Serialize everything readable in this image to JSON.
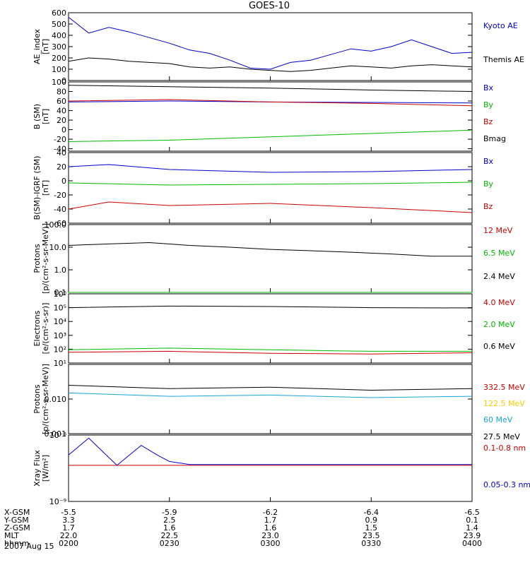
{
  "title": "GOES-10",
  "date": "2007 Aug 15",
  "chart_data": [
    {
      "type": "line",
      "id": "ae",
      "ylabel": [
        "AE_index",
        "[nT]"
      ],
      "ylim": [
        0,
        600
      ],
      "yticks": [
        "0",
        "100",
        "200",
        "300",
        "400",
        "500",
        "600"
      ],
      "ytick_values": [
        0,
        100,
        200,
        300,
        400,
        500,
        600
      ],
      "series": [
        {
          "name": "Kyoto AE",
          "color": "#0000cc",
          "x": [
            0,
            0.05,
            0.1,
            0.15,
            0.2,
            0.25,
            0.3,
            0.35,
            0.4,
            0.45,
            0.5,
            0.55,
            0.6,
            0.65,
            0.7,
            0.75,
            0.8,
            0.85,
            0.9,
            0.95,
            1.0
          ],
          "values": [
            560,
            420,
            470,
            430,
            380,
            330,
            270,
            240,
            180,
            110,
            100,
            160,
            180,
            230,
            280,
            260,
            300,
            360,
            300,
            240,
            250
          ]
        },
        {
          "name": "Themis AE",
          "color": "#000000",
          "x": [
            0,
            0.05,
            0.1,
            0.15,
            0.2,
            0.25,
            0.3,
            0.35,
            0.4,
            0.45,
            0.5,
            0.55,
            0.6,
            0.65,
            0.7,
            0.75,
            0.8,
            0.85,
            0.9,
            0.95,
            1.0
          ],
          "values": [
            170,
            200,
            190,
            170,
            160,
            150,
            120,
            110,
            120,
            100,
            90,
            80,
            90,
            110,
            130,
            120,
            110,
            130,
            140,
            130,
            120
          ]
        }
      ]
    },
    {
      "type": "line",
      "id": "b_sm",
      "ylabel": [
        "B (SM)",
        "[nT]"
      ],
      "ylim": [
        -45,
        100
      ],
      "yticks": [
        "100",
        "80",
        "60",
        "40",
        "20",
        "0",
        "-20",
        "-40"
      ],
      "ytick_values": [
        100,
        80,
        60,
        40,
        20,
        0,
        -20,
        -40
      ],
      "series": [
        {
          "name": "Bx",
          "color": "#0000cc",
          "x": [
            0,
            0.25,
            0.5,
            0.75,
            1.0
          ],
          "values": [
            58,
            60,
            58,
            57,
            56
          ]
        },
        {
          "name": "By",
          "color": "#00bb00",
          "x": [
            0,
            0.25,
            0.5,
            0.75,
            1.0
          ],
          "values": [
            -25,
            -22,
            -15,
            -8,
            -1
          ]
        },
        {
          "name": "Bz",
          "color": "#cc0000",
          "x": [
            0,
            0.25,
            0.5,
            0.75,
            1.0
          ],
          "values": [
            60,
            63,
            58,
            55,
            50
          ]
        },
        {
          "name": "Bmag",
          "color": "#000000",
          "x": [
            0,
            0.25,
            0.5,
            0.75,
            1.0
          ],
          "values": [
            93,
            90,
            87,
            83,
            80
          ]
        }
      ]
    },
    {
      "type": "line",
      "id": "b_igrf",
      "ylabel": [
        "B(SM)-IGRF (SM)",
        "[nT]"
      ],
      "ylim": [
        -60,
        40
      ],
      "yticks": [
        "40",
        "20",
        "0",
        "-20",
        "-40",
        "-60"
      ],
      "ytick_values": [
        40,
        20,
        0,
        -20,
        -40,
        -60
      ],
      "series": [
        {
          "name": "Bx",
          "color": "#0000cc",
          "x": [
            0,
            0.1,
            0.25,
            0.5,
            0.75,
            1.0
          ],
          "values": [
            20,
            23,
            16,
            12,
            13,
            16
          ]
        },
        {
          "name": "By",
          "color": "#00bb00",
          "x": [
            0,
            0.25,
            0.5,
            0.75,
            1.0
          ],
          "values": [
            -3,
            -6,
            -5,
            -4,
            -2
          ]
        },
        {
          "name": "Bz",
          "color": "#cc0000",
          "x": [
            0,
            0.1,
            0.25,
            0.5,
            0.75,
            1.0
          ],
          "values": [
            -40,
            -30,
            -35,
            -32,
            -38,
            -45
          ]
        }
      ]
    },
    {
      "type": "line",
      "id": "protons_low",
      "yscale": "log",
      "ylabel": [
        "Protons",
        "[p/(cm²-s-sr-MeV)]"
      ],
      "ylim": [
        0.1,
        100
      ],
      "yticks": [
        "0.1",
        "1.0",
        "10.0",
        "100.0"
      ],
      "ytick_values": [
        0.1,
        1,
        10,
        100
      ],
      "series": [
        {
          "name": "12 MeV",
          "color": "#cc0000",
          "x": [
            0.0,
            0.5,
            1.0
          ],
          "values": [
            0.1,
            0.1,
            0.1
          ]
        },
        {
          "name": "6.5 MeV",
          "color": "#00bb00",
          "x": [
            0.0,
            1.0
          ],
          "values": [
            0.1,
            0.1
          ]
        },
        {
          "name": "2.4 MeV",
          "color": "#000000",
          "x": [
            0,
            0.1,
            0.2,
            0.3,
            0.4,
            0.5,
            0.6,
            0.7,
            0.8,
            0.9,
            1.0
          ],
          "values": [
            12,
            14,
            16,
            12,
            10,
            8,
            7,
            6,
            5,
            4,
            4
          ]
        }
      ]
    },
    {
      "type": "line",
      "id": "electrons",
      "yscale": "log",
      "ylabel": [
        "Electrons",
        "[e/(cm²-s-sr)]"
      ],
      "ylim": [
        10,
        1000000
      ],
      "yticks": [
        "10¹",
        "10²",
        "10³",
        "10⁴",
        "10⁵",
        "10⁶"
      ],
      "ytick_values": [
        10,
        100,
        1000,
        10000,
        100000,
        1000000
      ],
      "series": [
        {
          "name": "4.0 MeV",
          "color": "#cc0000",
          "x": [
            0,
            0.25,
            0.5,
            0.75,
            1.0
          ],
          "values": [
            60,
            70,
            50,
            45,
            55
          ]
        },
        {
          "name": "2.0 MeV",
          "color": "#00bb00",
          "x": [
            0,
            0.25,
            0.5,
            0.75,
            1.0
          ],
          "values": [
            90,
            120,
            90,
            70,
            70
          ]
        },
        {
          "name": "0.6 MeV",
          "color": "#000000",
          "x": [
            0,
            0.25,
            0.5,
            0.75,
            1.0
          ],
          "values": [
            100000,
            130000,
            120000,
            100000,
            95000
          ]
        }
      ]
    },
    {
      "type": "line",
      "id": "protons_high",
      "yscale": "log",
      "ylabel": [
        "Protons",
        "[p/(cm²-s-sr-MeV)]"
      ],
      "ylim": [
        0.001,
        0.1
      ],
      "yticks": [
        "0.001",
        "0.010"
      ],
      "ytick_values": [
        0.001,
        0.01
      ],
      "series": [
        {
          "name": "332.5 MeV",
          "color": "#cc0000",
          "x": [],
          "values": []
        },
        {
          "name": "122.5 MeV",
          "color": "#ffcc00",
          "x": [],
          "values": []
        },
        {
          "name": "60 MeV",
          "color": "#1aa3d9",
          "x": [
            0,
            0.25,
            0.5,
            0.75,
            1.0
          ],
          "values": [
            0.015,
            0.012,
            0.013,
            0.011,
            0.012
          ]
        },
        {
          "name": "27.5 MeV",
          "color": "#000000",
          "x": [
            0,
            0.25,
            0.5,
            0.75,
            1.0
          ],
          "values": [
            0.025,
            0.02,
            0.022,
            0.018,
            0.02
          ]
        }
      ]
    },
    {
      "type": "line",
      "id": "xray",
      "yscale": "log",
      "ylabel": [
        "Xray Flux",
        "[W/m²]"
      ],
      "ylim": [
        1e-09,
        1e-08
      ],
      "yticks": [
        "10⁻⁹",
        "10⁻⁸"
      ],
      "ytick_values": [
        1e-09,
        1e-08
      ],
      "series": [
        {
          "name": "0.1-0.8 nm",
          "color": "#cc0000",
          "x": [
            0,
            1.0
          ],
          "values": [
            3.5e-09,
            3.5e-09
          ]
        },
        {
          "name": "0.05-0.3 nm",
          "color": "#0000cc",
          "x": [
            0,
            0.05,
            0.08,
            0.12,
            0.18,
            0.22,
            0.25,
            0.3,
            1.0
          ],
          "values": [
            5e-09,
            9e-09,
            6e-09,
            3.5e-09,
            7e-09,
            5e-09,
            4e-09,
            3.6e-09,
            3.6e-09
          ]
        }
      ]
    }
  ],
  "x_axis": {
    "rows": [
      {
        "label": "X-GSM",
        "values": [
          "-5.5",
          "-5.9",
          "-6.2",
          "-6.4",
          "-6.5"
        ]
      },
      {
        "label": "Y-GSM",
        "values": [
          "3.3",
          "2.5",
          "1.7",
          "0.9",
          "0.1"
        ]
      },
      {
        "label": "Z-GSM",
        "values": [
          "1.7",
          "1.6",
          "1.6",
          "1.5",
          "1.4"
        ]
      },
      {
        "label": "MLT",
        "values": [
          "22.0",
          "22.5",
          "23.0",
          "23.5",
          "23.9"
        ]
      },
      {
        "label": "hhmm",
        "values": [
          "0200",
          "0230",
          "0300",
          "0330",
          "0400"
        ]
      }
    ]
  }
}
